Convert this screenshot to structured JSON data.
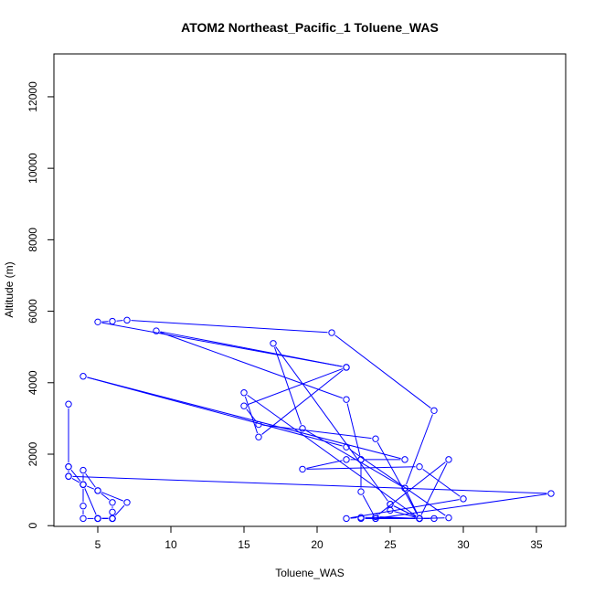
{
  "chart_data": {
    "type": "line",
    "title": "ATOM2 Northeast_Pacific_1 Toluene_WAS",
    "xlabel": "Toluene_WAS",
    "ylabel": "Altitude (m)",
    "xlim": [
      2.0,
      37.0
    ],
    "ylim": [
      -20,
      13200
    ],
    "x_ticks": [
      5,
      10,
      15,
      20,
      25,
      30,
      35
    ],
    "y_ticks": [
      0,
      2000,
      4000,
      6000,
      8000,
      10000,
      12000
    ],
    "grid": false,
    "series": [
      {
        "color": "#0000ff",
        "marker": "open-circle",
        "points": [
          [
            3,
            3400
          ],
          [
            3,
            1650
          ],
          [
            3,
            1380
          ],
          [
            4,
            1150
          ],
          [
            5,
            980
          ],
          [
            6,
            650
          ],
          [
            6,
            380
          ],
          [
            6,
            200
          ],
          [
            5,
            200
          ],
          [
            4,
            200
          ],
          [
            4,
            550
          ],
          [
            4,
            1150
          ],
          [
            4,
            1550
          ],
          [
            5,
            980
          ],
          [
            7,
            650
          ],
          [
            6,
            200
          ],
          [
            5,
            200
          ],
          [
            6,
            200
          ],
          [
            5,
            200
          ],
          [
            6,
            200
          ],
          [
            5,
            200
          ],
          [
            4,
            1150
          ],
          [
            3,
            1650
          ],
          [
            3,
            1380
          ],
          [
            36,
            900
          ],
          [
            24,
            200
          ],
          [
            27,
            200
          ],
          [
            29,
            220
          ],
          [
            22,
            2200
          ],
          [
            4,
            4180
          ],
          [
            26,
            1850
          ],
          [
            23,
            1850
          ],
          [
            22,
            1850
          ],
          [
            19,
            1580
          ],
          [
            27,
            1650
          ],
          [
            30,
            750
          ],
          [
            22,
            200
          ],
          [
            23,
            230
          ],
          [
            28,
            200
          ],
          [
            27,
            200
          ],
          [
            25,
            430
          ],
          [
            25,
            600
          ],
          [
            27,
            200
          ],
          [
            26,
            1050
          ],
          [
            28,
            3220
          ],
          [
            21,
            5400
          ],
          [
            7,
            5750
          ],
          [
            6,
            5720
          ],
          [
            5,
            5700
          ],
          [
            22,
            4430
          ],
          [
            16,
            2480
          ],
          [
            15,
            3720
          ],
          [
            27,
            200
          ],
          [
            24,
            2430
          ],
          [
            16,
            2830
          ],
          [
            15,
            3350
          ],
          [
            22,
            4430
          ],
          [
            9,
            5450
          ],
          [
            22,
            3530
          ],
          [
            23,
            1850
          ],
          [
            23,
            950
          ],
          [
            24,
            200
          ],
          [
            23,
            200
          ],
          [
            27,
            200
          ],
          [
            25,
            600
          ],
          [
            17,
            5100
          ],
          [
            19,
            2720
          ],
          [
            26,
            1050
          ],
          [
            27,
            200
          ],
          [
            29,
            1850
          ],
          [
            24,
            250
          ],
          [
            27,
            200
          ]
        ]
      }
    ]
  }
}
